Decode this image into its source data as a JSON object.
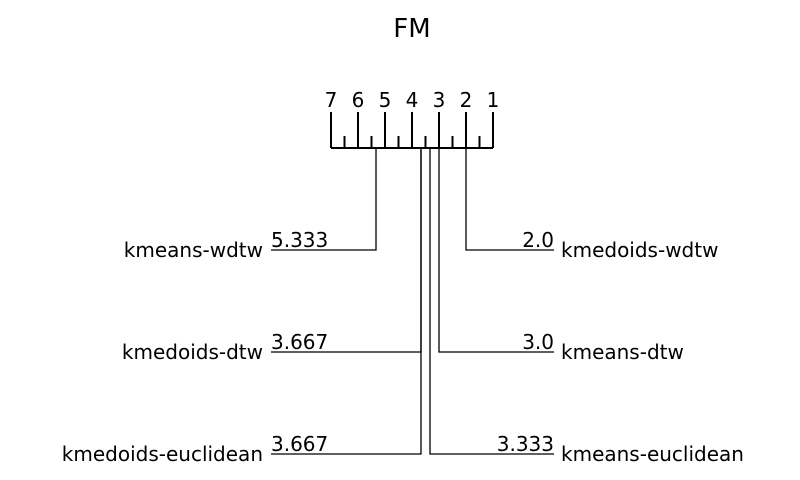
{
  "chart_data": {
    "type": "critical-difference-diagram",
    "title": "FM",
    "axis": {
      "min_rank": 1,
      "max_rank": 7,
      "tick_labels": [
        "7",
        "6",
        "5",
        "4",
        "3",
        "2",
        "1"
      ],
      "direction": "descending-left-to-right"
    },
    "methods": [
      {
        "name": "kmeans-wdtw",
        "avg_rank": 5.333,
        "rank_label": "5.333",
        "side": "left"
      },
      {
        "name": "kmedoids-dtw",
        "avg_rank": 3.667,
        "rank_label": "3.667",
        "side": "left"
      },
      {
        "name": "kmedoids-euclidean",
        "avg_rank": 3.667,
        "rank_label": "3.667",
        "side": "left"
      },
      {
        "name": "kmedoids-wdtw",
        "avg_rank": 2.0,
        "rank_label": "2.0",
        "side": "right"
      },
      {
        "name": "kmeans-dtw",
        "avg_rank": 3.0,
        "rank_label": "3.0",
        "side": "right"
      },
      {
        "name": "kmeans-euclidean",
        "avg_rank": 3.333,
        "rank_label": "3.333",
        "side": "right"
      }
    ],
    "cliques": []
  }
}
